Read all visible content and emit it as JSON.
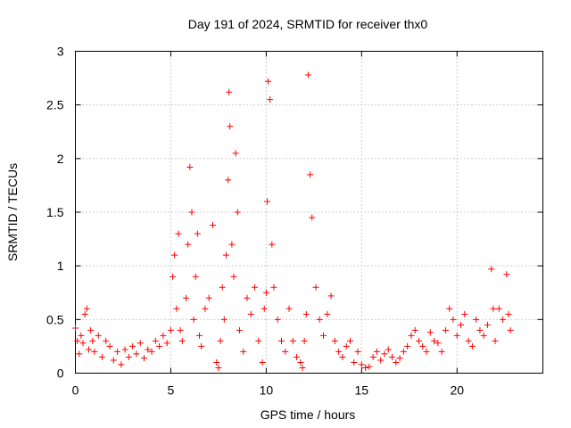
{
  "chart_data": {
    "type": "scatter",
    "title": "Day 191 of 2024, SRMTID for receiver thx0",
    "xlabel": "GPS time / hours",
    "ylabel": "SRMTID / TECUs",
    "xlim": [
      0,
      24.5
    ],
    "ylim": [
      0,
      3
    ],
    "xticks": [
      0,
      5,
      10,
      15,
      20
    ],
    "xtick_labels": [
      "0",
      "5",
      "10",
      "15",
      "20"
    ],
    "yticks": [
      0,
      0.5,
      1,
      1.5,
      2,
      2.5,
      3
    ],
    "ytick_labels": [
      "0",
      "0.5",
      "1",
      "1.5",
      "2",
      "2.5",
      "3"
    ],
    "grid": true,
    "marker": "+",
    "color": "#ff0000",
    "series": [
      {
        "name": "SRMTID",
        "x": [
          0.0,
          0.1,
          0.2,
          0.3,
          0.4,
          0.5,
          0.6,
          0.7,
          0.8,
          0.9,
          1.0,
          1.2,
          1.4,
          1.6,
          1.8,
          2.0,
          2.2,
          2.4,
          2.6,
          2.8,
          3.0,
          3.2,
          3.4,
          3.6,
          3.8,
          4.0,
          4.2,
          4.4,
          4.6,
          4.8,
          5.0,
          5.1,
          5.2,
          5.3,
          5.4,
          5.5,
          5.6,
          5.8,
          5.9,
          6.0,
          6.1,
          6.2,
          6.3,
          6.4,
          6.5,
          6.6,
          6.8,
          7.0,
          7.2,
          7.4,
          7.5,
          7.6,
          7.7,
          7.8,
          7.9,
          8.0,
          8.05,
          8.1,
          8.2,
          8.3,
          8.4,
          8.5,
          8.6,
          8.8,
          9.0,
          9.2,
          9.4,
          9.6,
          9.8,
          9.9,
          10.0,
          10.05,
          10.1,
          10.2,
          10.3,
          10.4,
          10.6,
          10.8,
          11.0,
          11.2,
          11.4,
          11.6,
          11.8,
          11.9,
          12.0,
          12.1,
          12.2,
          12.3,
          12.4,
          12.6,
          12.8,
          13.0,
          13.2,
          13.4,
          13.6,
          13.8,
          14.0,
          14.2,
          14.4,
          14.6,
          14.8,
          15.0,
          15.2,
          15.4,
          15.6,
          15.8,
          16.0,
          16.2,
          16.4,
          16.6,
          16.8,
          17.0,
          17.2,
          17.4,
          17.6,
          17.8,
          18.0,
          18.2,
          18.4,
          18.6,
          18.8,
          19.0,
          19.2,
          19.4,
          19.6,
          19.8,
          20.0,
          20.2,
          20.4,
          20.6,
          20.8,
          21.0,
          21.2,
          21.4,
          21.6,
          21.8,
          21.9,
          22.0,
          22.2,
          22.4,
          22.6,
          22.7,
          22.8
        ],
        "y": [
          0.42,
          0.3,
          0.18,
          0.35,
          0.28,
          0.55,
          0.6,
          0.22,
          0.4,
          0.3,
          0.2,
          0.35,
          0.15,
          0.3,
          0.25,
          0.12,
          0.2,
          0.08,
          0.22,
          0.15,
          0.25,
          0.18,
          0.28,
          0.14,
          0.22,
          0.2,
          0.3,
          0.25,
          0.35,
          0.28,
          0.4,
          0.9,
          1.1,
          0.6,
          1.3,
          0.4,
          0.3,
          0.7,
          1.2,
          1.92,
          1.5,
          0.5,
          0.9,
          1.3,
          0.35,
          0.25,
          0.6,
          0.7,
          1.38,
          0.1,
          0.05,
          0.3,
          0.8,
          0.5,
          1.1,
          1.8,
          2.62,
          2.3,
          1.2,
          0.9,
          2.05,
          1.5,
          0.4,
          0.2,
          0.7,
          0.55,
          0.8,
          0.3,
          0.1,
          0.6,
          0.75,
          1.6,
          2.72,
          2.55,
          1.2,
          0.8,
          0.5,
          0.3,
          0.2,
          0.6,
          0.3,
          0.15,
          0.1,
          0.05,
          0.3,
          0.55,
          2.78,
          1.85,
          1.45,
          0.8,
          0.5,
          0.35,
          0.55,
          0.72,
          0.3,
          0.2,
          0.15,
          0.25,
          0.3,
          0.1,
          0.2,
          0.08,
          0.05,
          0.06,
          0.15,
          0.2,
          0.12,
          0.18,
          0.22,
          0.15,
          0.1,
          0.14,
          0.2,
          0.25,
          0.35,
          0.4,
          0.3,
          0.25,
          0.2,
          0.38,
          0.3,
          0.28,
          0.2,
          0.4,
          0.6,
          0.5,
          0.35,
          0.45,
          0.55,
          0.3,
          0.25,
          0.5,
          0.4,
          0.35,
          0.45,
          0.97,
          0.6,
          0.3,
          0.6,
          0.5,
          0.92,
          0.55,
          0.4
        ]
      }
    ]
  }
}
